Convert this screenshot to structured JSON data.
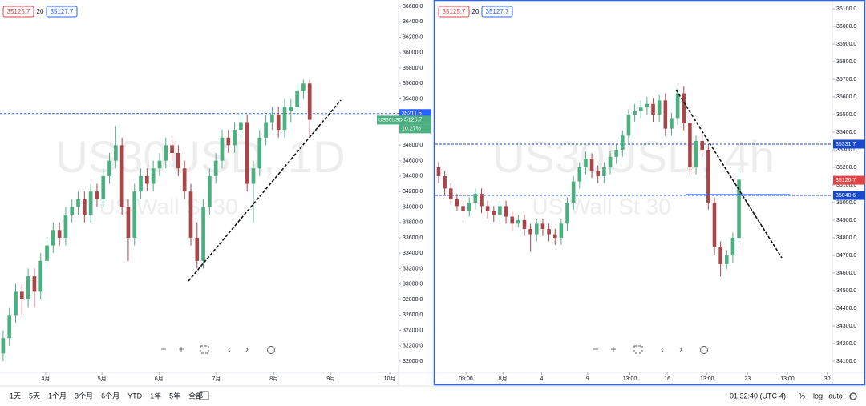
{
  "chart_data": [
    {
      "type": "candlestick",
      "title": "US30USD, 1D",
      "subtitle": "US Wall St 30",
      "bid": "35125.7",
      "spread": "20",
      "ask": "35127.7",
      "up_color": "#4caf80",
      "down_color": "#a8474a",
      "open": [
        32100,
        32300,
        32600,
        32900,
        32800,
        33100,
        32900,
        33300,
        33500,
        33700,
        33600,
        33900,
        34000,
        34100,
        33900,
        34200,
        34100,
        34400,
        34600,
        34800,
        34000,
        33600,
        34200,
        34400,
        34300,
        34500,
        34600,
        34800,
        34700,
        34500,
        34200,
        33600,
        33300,
        34000,
        34400,
        34600,
        34900,
        34800,
        35000,
        35100,
        34300,
        34500,
        34900,
        35100,
        35200,
        35000,
        35250,
        35300,
        35500,
        35600
      ],
      "high": [
        32400,
        32700,
        33000,
        33000,
        33200,
        33200,
        33400,
        33600,
        33800,
        33800,
        34000,
        34100,
        34200,
        34200,
        34300,
        34300,
        34500,
        34700,
        35050,
        34900,
        34100,
        34300,
        34500,
        34500,
        34600,
        34700,
        34900,
        34900,
        34800,
        34600,
        34300,
        33800,
        34100,
        34500,
        34700,
        35000,
        35000,
        35100,
        35200,
        35200,
        34600,
        35000,
        35200,
        35300,
        35300,
        35400,
        35400,
        35600,
        35650,
        35650
      ],
      "low": [
        32000,
        32200,
        32500,
        32600,
        32700,
        32700,
        32800,
        33200,
        33400,
        33500,
        33500,
        33800,
        33900,
        33800,
        33800,
        34000,
        34000,
        34300,
        34500,
        33900,
        33300,
        33500,
        34100,
        34200,
        34200,
        34400,
        34500,
        34600,
        34400,
        34100,
        33500,
        33200,
        33200,
        33900,
        34300,
        34500,
        34700,
        34700,
        34900,
        34200,
        33800,
        34400,
        34800,
        35000,
        34900,
        34900,
        35100,
        35200,
        35400,
        34900
      ],
      "close": [
        32300,
        32600,
        32900,
        32800,
        33100,
        32900,
        33300,
        33500,
        33700,
        33600,
        33900,
        34000,
        34100,
        33900,
        34200,
        34100,
        34400,
        34600,
        34800,
        34000,
        33600,
        34200,
        34400,
        34300,
        34500,
        34600,
        34800,
        34700,
        34500,
        34200,
        33600,
        33300,
        34000,
        34400,
        34600,
        34900,
        34800,
        35000,
        35100,
        34300,
        34500,
        34900,
        35100,
        35200,
        35000,
        35300,
        35300,
        35500,
        35600,
        35130
      ],
      "xlim": [
        -0.5,
        63.2
      ],
      "xticks": [
        {
          "value": 6.8,
          "label": "4月"
        },
        {
          "value": 15.8,
          "label": "5月"
        },
        {
          "value": 24.9,
          "label": "6月"
        },
        {
          "value": 34.1,
          "label": "7月"
        },
        {
          "value": 43.3,
          "label": "8月"
        },
        {
          "value": 52.4,
          "label": "9月"
        },
        {
          "value": 61.8,
          "label": "10月"
        }
      ],
      "ylim": [
        31855,
        36683
      ],
      "yticks": [
        {
          "value": 32000,
          "label": "32000.0"
        },
        {
          "value": 32200,
          "label": "32200.0"
        },
        {
          "value": 32400,
          "label": "32400.0"
        },
        {
          "value": 32600,
          "label": "32600.0"
        },
        {
          "value": 32800,
          "label": "32800.0"
        },
        {
          "value": 33000,
          "label": "33000.0"
        },
        {
          "value": 33200,
          "label": "33200.0"
        },
        {
          "value": 33400,
          "label": "33400.0"
        },
        {
          "value": 33600,
          "label": "33600.0"
        },
        {
          "value": 33800,
          "label": "33800.0"
        },
        {
          "value": 34000,
          "label": "34000.0"
        },
        {
          "value": 34200,
          "label": "34200.0"
        },
        {
          "value": 34400,
          "label": "34400.0"
        },
        {
          "value": 34600,
          "label": "34600.0"
        },
        {
          "value": 34800,
          "label": "34800.0"
        },
        {
          "value": 35000,
          "label": "35000.0"
        },
        {
          "value": 35200,
          "label": "35200.0"
        },
        {
          "value": 35400,
          "label": "35400.0"
        },
        {
          "value": 35600,
          "label": "35600.0"
        },
        {
          "value": 35800,
          "label": "35800.0"
        },
        {
          "value": 36000,
          "label": "36000.0"
        },
        {
          "value": 36200,
          "label": "36200.0"
        },
        {
          "value": 36400,
          "label": "36400.0"
        },
        {
          "value": 36600,
          "label": "36600.0"
        }
      ],
      "price_lines": [
        {
          "value": 35211.5,
          "color": "#2962ff"
        }
      ],
      "last_price": 35126.7,
      "last_color": "#4caf80",
      "symbol_tag": "US30USD",
      "change": "10.27%"
    },
    {
      "type": "candlestick",
      "title": "US30USD, 4h",
      "subtitle": "US Wall St 30",
      "bid": "35125.7",
      "spread": "20",
      "ask": "35127.7",
      "up_color": "#4caf80",
      "down_color": "#a8474a",
      "open": [
        35200,
        35150,
        35080,
        35020,
        34980,
        34950,
        35000,
        35050,
        34980,
        34950,
        34930,
        34980,
        34920,
        34880,
        34900,
        34850,
        34820,
        34880,
        34850,
        34820,
        34800,
        34880,
        35000,
        35120,
        35200,
        35250,
        35180,
        35150,
        35200,
        35260,
        35300,
        35380,
        35500,
        35520,
        35540,
        35560,
        35500,
        35580,
        35420,
        35480,
        35620,
        35450,
        35200,
        35350,
        35300,
        35000,
        34750,
        34650,
        34700,
        34800
      ],
      "high": [
        35230,
        35180,
        35110,
        35050,
        35010,
        35030,
        35080,
        35080,
        35010,
        34980,
        35010,
        35010,
        34950,
        34930,
        34930,
        34880,
        34910,
        34910,
        34880,
        34850,
        34910,
        35030,
        35150,
        35230,
        35290,
        35280,
        35210,
        35230,
        35290,
        35330,
        35410,
        35530,
        35560,
        35580,
        35600,
        35590,
        35610,
        35620,
        35510,
        35650,
        35660,
        35480,
        35380,
        35380,
        35330,
        35030,
        34780,
        34730,
        34830,
        35180
      ],
      "low": [
        35110,
        35040,
        34990,
        34950,
        34910,
        34920,
        34960,
        34940,
        34910,
        34890,
        34890,
        34880,
        34840,
        34860,
        34810,
        34720,
        34780,
        34810,
        34780,
        34760,
        34760,
        34840,
        34960,
        35080,
        35160,
        35140,
        35110,
        35110,
        35160,
        35220,
        35260,
        35340,
        35460,
        35480,
        35500,
        35460,
        35460,
        35380,
        35380,
        35440,
        35410,
        35160,
        35160,
        35260,
        34960,
        34700,
        34580,
        34620,
        34660,
        34760
      ],
      "close": [
        35150,
        35080,
        35020,
        34980,
        34950,
        35000,
        35050,
        34980,
        34950,
        34930,
        34980,
        34920,
        34880,
        34900,
        34850,
        34820,
        34880,
        34850,
        34820,
        34800,
        34880,
        35000,
        35120,
        35200,
        35250,
        35180,
        35150,
        35200,
        35260,
        35300,
        35380,
        35500,
        35520,
        35540,
        35560,
        35500,
        35580,
        35420,
        35480,
        35620,
        35450,
        35200,
        35350,
        35300,
        35000,
        34750,
        34650,
        34700,
        34800,
        35130
      ],
      "xlim": [
        -0.52,
        64.1
      ],
      "xticks": [
        {
          "value": 4.45,
          "label": "09:00"
        },
        {
          "value": 10.5,
          "label": "8月"
        },
        {
          "value": 16.8,
          "label": "4"
        },
        {
          "value": 24.3,
          "label": "9"
        },
        {
          "value": 31.2,
          "label": "13:00"
        },
        {
          "value": 37.3,
          "label": "16"
        },
        {
          "value": 43.8,
          "label": "13:00"
        },
        {
          "value": 50.4,
          "label": "23"
        },
        {
          "value": 56.9,
          "label": "13:00"
        },
        {
          "value": 63.4,
          "label": "30"
        }
      ],
      "ylim": [
        34036,
        36150
      ],
      "yticks": [
        {
          "value": 34100,
          "label": "34100.0"
        },
        {
          "value": 34200,
          "label": "34200.0"
        },
        {
          "value": 34300,
          "label": "34300.0"
        },
        {
          "value": 34400,
          "label": "34400.0"
        },
        {
          "value": 34500,
          "label": "34500.0"
        },
        {
          "value": 34600,
          "label": "34600.0"
        },
        {
          "value": 34700,
          "label": "34700.0"
        },
        {
          "value": 34800,
          "label": "34800.0"
        },
        {
          "value": 34900,
          "label": "34900.0"
        },
        {
          "value": 35000,
          "label": "35000.0"
        },
        {
          "value": 35100,
          "label": "35100.0"
        },
        {
          "value": 35200,
          "label": "35200.0"
        },
        {
          "value": 35300,
          "label": "35300.0"
        },
        {
          "value": 35400,
          "label": "35400.0"
        },
        {
          "value": 35500,
          "label": "35500.0"
        },
        {
          "value": 35600,
          "label": "35600.0"
        },
        {
          "value": 35700,
          "label": "35700.0"
        },
        {
          "value": 35800,
          "label": "35800.0"
        },
        {
          "value": 35900,
          "label": "35900.0"
        },
        {
          "value": 36000,
          "label": "36000.0"
        },
        {
          "value": 36100,
          "label": "36100.0"
        }
      ],
      "price_lines": [
        {
          "value": 35331.7,
          "color": "#1848cc"
        },
        {
          "value": 35040.6,
          "color": "#1848cc"
        }
      ],
      "last_price": 35126.7,
      "last_color": "#e04545"
    }
  ],
  "toolbar": {
    "ranges": [
      "1天",
      "5天",
      "1个月",
      "3个月",
      "6个月",
      "YTD",
      "1年",
      "5年",
      "全部"
    ],
    "time": "01:32:40 (UTC-4)",
    "percent": "%",
    "log": "log",
    "auto": "auto"
  }
}
